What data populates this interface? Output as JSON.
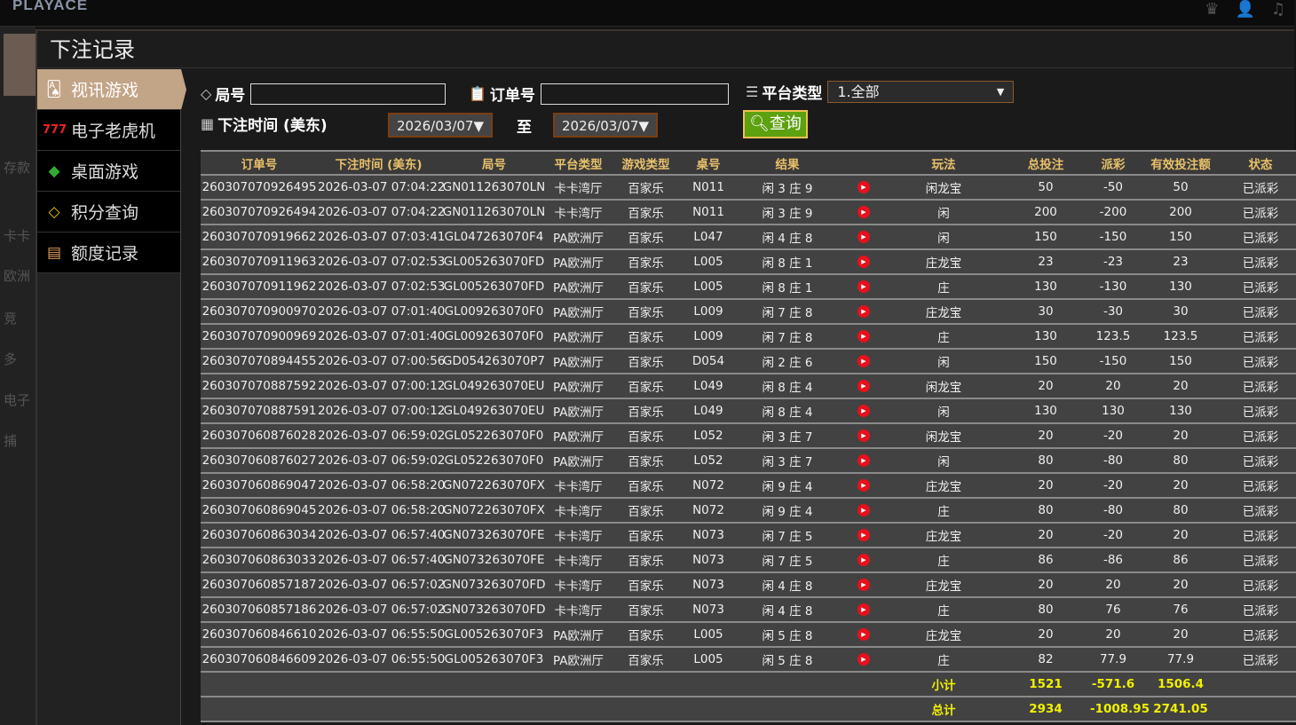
{
  "app": {
    "logo": "PLAYACE",
    "top_icons": [
      "vip-icon",
      "user-icon",
      "music-icon"
    ]
  },
  "background": {
    "left_labels": [
      "存款",
      "卡卡",
      "欧洲",
      "竞",
      "多",
      "电子",
      "捕"
    ]
  },
  "modal": {
    "title": "下注记录"
  },
  "sidebar": {
    "items": [
      {
        "label": "视讯游戏",
        "icon": "cards-icon",
        "active": true
      },
      {
        "label": "电子老虎机",
        "icon": "slot-777-icon"
      },
      {
        "label": "桌面游戏",
        "icon": "dice-icon"
      },
      {
        "label": "积分查询",
        "icon": "diamond-icon"
      },
      {
        "label": "额度记录",
        "icon": "document-icon"
      }
    ]
  },
  "filters": {
    "round_label": "局号",
    "round_value": "",
    "order_label": "订单号",
    "order_value": "",
    "platform_label": "平台类型",
    "platform_value": "1.全部",
    "time_label": "下注时间 (美东)",
    "date_from": "2026/03/07",
    "to_label": "至",
    "date_to": "2026/03/07",
    "search_label": "查询"
  },
  "table": {
    "headers": [
      "订单号",
      "下注时间 (美东)",
      "局号",
      "平台类型",
      "游戏类型",
      "桌号",
      "结果",
      "",
      "玩法",
      "总投注",
      "派彩",
      "有效投注额",
      "状态"
    ],
    "rows": [
      [
        "260307070926495",
        "2026-03-07 07:04:22",
        "GN011263070LN",
        "卡卡湾厅",
        "百家乐",
        "N011",
        "闲 3 庄 9",
        "闲龙宝",
        "50",
        "-50",
        "50",
        "已派彩"
      ],
      [
        "260307070926494",
        "2026-03-07 07:04:22",
        "GN011263070LN",
        "卡卡湾厅",
        "百家乐",
        "N011",
        "闲 3 庄 9",
        "闲",
        "200",
        "-200",
        "200",
        "已派彩"
      ],
      [
        "260307070919662",
        "2026-03-07 07:03:41",
        "GL047263070F4",
        "PA欧洲厅",
        "百家乐",
        "L047",
        "闲 4 庄 8",
        "闲",
        "150",
        "-150",
        "150",
        "已派彩"
      ],
      [
        "260307070911963",
        "2026-03-07 07:02:53",
        "GL005263070FD",
        "PA欧洲厅",
        "百家乐",
        "L005",
        "闲 8 庄 1",
        "庄龙宝",
        "23",
        "-23",
        "23",
        "已派彩"
      ],
      [
        "260307070911962",
        "2026-03-07 07:02:53",
        "GL005263070FD",
        "PA欧洲厅",
        "百家乐",
        "L005",
        "闲 8 庄 1",
        "庄",
        "130",
        "-130",
        "130",
        "已派彩"
      ],
      [
        "260307070900970",
        "2026-03-07 07:01:40",
        "GL009263070F0",
        "PA欧洲厅",
        "百家乐",
        "L009",
        "闲 7 庄 8",
        "庄龙宝",
        "30",
        "-30",
        "30",
        "已派彩"
      ],
      [
        "260307070900969",
        "2026-03-07 07:01:40",
        "GL009263070F0",
        "PA欧洲厅",
        "百家乐",
        "L009",
        "闲 7 庄 8",
        "庄",
        "130",
        "123.5",
        "123.5",
        "已派彩"
      ],
      [
        "260307070894455",
        "2026-03-07 07:00:56",
        "GD054263070P7",
        "PA欧洲厅",
        "百家乐",
        "D054",
        "闲 2 庄 6",
        "闲",
        "150",
        "-150",
        "150",
        "已派彩"
      ],
      [
        "260307070887592",
        "2026-03-07 07:00:12",
        "GL049263070EU",
        "PA欧洲厅",
        "百家乐",
        "L049",
        "闲 8 庄 4",
        "闲龙宝",
        "20",
        "20",
        "20",
        "已派彩"
      ],
      [
        "260307070887591",
        "2026-03-07 07:00:12",
        "GL049263070EU",
        "PA欧洲厅",
        "百家乐",
        "L049",
        "闲 8 庄 4",
        "闲",
        "130",
        "130",
        "130",
        "已派彩"
      ],
      [
        "260307060876028",
        "2026-03-07 06:59:02",
        "GL052263070F0",
        "PA欧洲厅",
        "百家乐",
        "L052",
        "闲 3 庄 7",
        "闲龙宝",
        "20",
        "-20",
        "20",
        "已派彩"
      ],
      [
        "260307060876027",
        "2026-03-07 06:59:02",
        "GL052263070F0",
        "PA欧洲厅",
        "百家乐",
        "L052",
        "闲 3 庄 7",
        "闲",
        "80",
        "-80",
        "80",
        "已派彩"
      ],
      [
        "260307060869047",
        "2026-03-07 06:58:20",
        "GN072263070FX",
        "卡卡湾厅",
        "百家乐",
        "N072",
        "闲 9 庄 4",
        "庄龙宝",
        "20",
        "-20",
        "20",
        "已派彩"
      ],
      [
        "260307060869045",
        "2026-03-07 06:58:20",
        "GN072263070FX",
        "卡卡湾厅",
        "百家乐",
        "N072",
        "闲 9 庄 4",
        "庄",
        "80",
        "-80",
        "80",
        "已派彩"
      ],
      [
        "260307060863034",
        "2026-03-07 06:57:40",
        "GN073263070FE",
        "卡卡湾厅",
        "百家乐",
        "N073",
        "闲 7 庄 5",
        "庄龙宝",
        "20",
        "-20",
        "20",
        "已派彩"
      ],
      [
        "260307060863033",
        "2026-03-07 06:57:40",
        "GN073263070FE",
        "卡卡湾厅",
        "百家乐",
        "N073",
        "闲 7 庄 5",
        "庄",
        "86",
        "-86",
        "86",
        "已派彩"
      ],
      [
        "260307060857187",
        "2026-03-07 06:57:02",
        "GN073263070FD",
        "卡卡湾厅",
        "百家乐",
        "N073",
        "闲 4 庄 8",
        "庄龙宝",
        "20",
        "20",
        "20",
        "已派彩"
      ],
      [
        "260307060857186",
        "2026-03-07 06:57:02",
        "GN073263070FD",
        "卡卡湾厅",
        "百家乐",
        "N073",
        "闲 4 庄 8",
        "庄",
        "80",
        "76",
        "76",
        "已派彩"
      ],
      [
        "260307060846610",
        "2026-03-07 06:55:50",
        "GL005263070F3",
        "PA欧洲厅",
        "百家乐",
        "L005",
        "闲 5 庄 8",
        "庄龙宝",
        "20",
        "20",
        "20",
        "已派彩"
      ],
      [
        "260307060846609",
        "2026-03-07 06:55:50",
        "GL005263070F3",
        "PA欧洲厅",
        "百家乐",
        "L005",
        "闲 5 庄 8",
        "庄",
        "82",
        "77.9",
        "77.9",
        "已派彩"
      ]
    ],
    "subtotal": {
      "label": "小计",
      "bet": "1521",
      "payout": "-571.6",
      "valid": "1506.4"
    },
    "total": {
      "label": "总计",
      "bet": "2934",
      "payout": "-1008.95",
      "valid": "2741.05"
    },
    "colors": {
      "header": "#e8c06a",
      "payout_negative": "#7fdc1e",
      "payout_positive": "#c8102e",
      "status": "#1fd01f",
      "totals": "#f0f000"
    }
  }
}
